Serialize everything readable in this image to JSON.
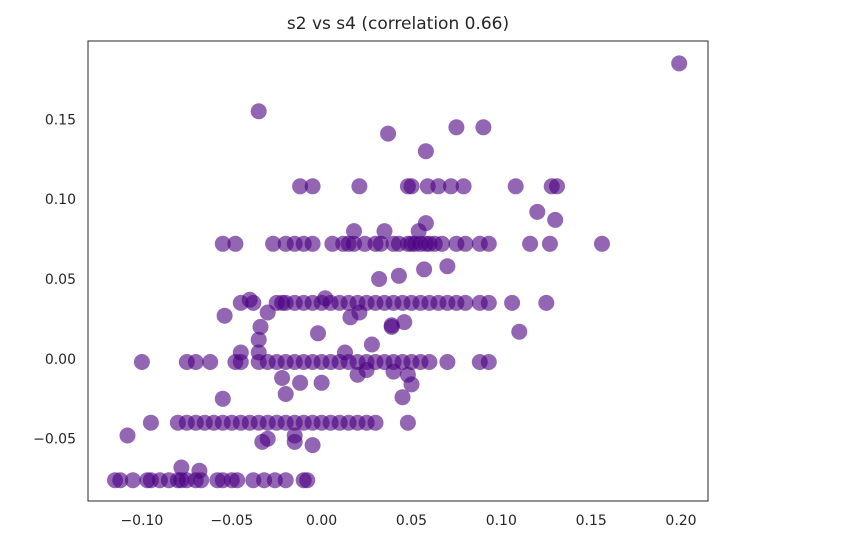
{
  "chart_data": {
    "type": "scatter",
    "title": "s2 vs s4 (correlation 0.66)",
    "xlabel": "",
    "ylabel": "",
    "xlim": [
      -0.13,
      0.215
    ],
    "ylim": [
      -0.089,
      0.199
    ],
    "x_ticks": [
      -0.1,
      -0.05,
      0.0,
      0.05,
      0.1,
      0.15,
      0.2
    ],
    "x_tick_labels": [
      "−0.10",
      "−0.05",
      "0.00",
      "0.05",
      "0.10",
      "0.15",
      "0.20"
    ],
    "y_ticks": [
      -0.05,
      0.0,
      0.05,
      0.1,
      0.15
    ],
    "y_tick_labels": [
      "−0.05",
      "0.00",
      "0.05",
      "0.10",
      "0.15"
    ],
    "grid": false,
    "legend": "none",
    "marker_color": "#4b0082",
    "marker_alpha": 0.6,
    "points": [
      [
        0.199,
        0.185
      ],
      [
        -0.035,
        0.155
      ],
      [
        0.037,
        0.141
      ],
      [
        0.075,
        0.145
      ],
      [
        0.09,
        0.145
      ],
      [
        0.058,
        0.13
      ],
      [
        -0.012,
        0.108
      ],
      [
        -0.005,
        0.108
      ],
      [
        0.021,
        0.108
      ],
      [
        0.048,
        0.108
      ],
      [
        0.05,
        0.108
      ],
      [
        0.059,
        0.108
      ],
      [
        0.065,
        0.108
      ],
      [
        0.072,
        0.108
      ],
      [
        0.079,
        0.108
      ],
      [
        0.108,
        0.108
      ],
      [
        0.128,
        0.108
      ],
      [
        0.131,
        0.108
      ],
      [
        0.12,
        0.092
      ],
      [
        0.13,
        0.087
      ],
      [
        0.058,
        0.085
      ],
      [
        0.018,
        0.08
      ],
      [
        0.054,
        0.08
      ],
      [
        0.035,
        0.08
      ],
      [
        -0.055,
        0.072
      ],
      [
        -0.048,
        0.072
      ],
      [
        -0.027,
        0.072
      ],
      [
        -0.02,
        0.072
      ],
      [
        -0.015,
        0.072
      ],
      [
        -0.01,
        0.072
      ],
      [
        -0.005,
        0.072
      ],
      [
        0.006,
        0.072
      ],
      [
        0.012,
        0.072
      ],
      [
        0.015,
        0.072
      ],
      [
        0.018,
        0.072
      ],
      [
        0.024,
        0.072
      ],
      [
        0.03,
        0.072
      ],
      [
        0.033,
        0.072
      ],
      [
        0.04,
        0.072
      ],
      [
        0.043,
        0.072
      ],
      [
        0.048,
        0.072
      ],
      [
        0.05,
        0.072
      ],
      [
        0.052,
        0.072
      ],
      [
        0.055,
        0.072
      ],
      [
        0.058,
        0.072
      ],
      [
        0.06,
        0.072
      ],
      [
        0.063,
        0.072
      ],
      [
        0.067,
        0.072
      ],
      [
        0.075,
        0.072
      ],
      [
        0.08,
        0.072
      ],
      [
        0.088,
        0.072
      ],
      [
        0.093,
        0.072
      ],
      [
        0.116,
        0.072
      ],
      [
        0.127,
        0.072
      ],
      [
        0.156,
        0.072
      ],
      [
        0.07,
        0.058
      ],
      [
        0.057,
        0.056
      ],
      [
        0.043,
        0.052
      ],
      [
        0.032,
        0.05
      ],
      [
        -0.045,
        0.035
      ],
      [
        -0.04,
        0.037
      ],
      [
        -0.038,
        0.035
      ],
      [
        -0.025,
        0.035
      ],
      [
        -0.022,
        0.035
      ],
      [
        -0.02,
        0.035
      ],
      [
        -0.015,
        0.035
      ],
      [
        -0.01,
        0.035
      ],
      [
        -0.005,
        0.035
      ],
      [
        0.0,
        0.035
      ],
      [
        0.002,
        0.038
      ],
      [
        0.005,
        0.035
      ],
      [
        0.01,
        0.035
      ],
      [
        0.015,
        0.035
      ],
      [
        0.02,
        0.035
      ],
      [
        0.025,
        0.035
      ],
      [
        0.03,
        0.035
      ],
      [
        0.035,
        0.035
      ],
      [
        0.04,
        0.035
      ],
      [
        0.045,
        0.035
      ],
      [
        0.05,
        0.035
      ],
      [
        0.055,
        0.035
      ],
      [
        0.06,
        0.035
      ],
      [
        0.065,
        0.035
      ],
      [
        0.07,
        0.035
      ],
      [
        0.075,
        0.035
      ],
      [
        0.08,
        0.035
      ],
      [
        0.088,
        0.035
      ],
      [
        0.093,
        0.035
      ],
      [
        0.106,
        0.035
      ],
      [
        0.125,
        0.035
      ],
      [
        -0.054,
        0.027
      ],
      [
        -0.03,
        0.029
      ],
      [
        -0.034,
        0.02
      ],
      [
        0.016,
        0.026
      ],
      [
        0.021,
        0.029
      ],
      [
        0.039,
        0.021
      ],
      [
        0.046,
        0.023
      ],
      [
        0.11,
        0.017
      ],
      [
        -0.002,
        0.016
      ],
      [
        0.039,
        0.02
      ],
      [
        -0.035,
        0.012
      ],
      [
        -0.035,
        0.004
      ],
      [
        -0.045,
        0.004
      ],
      [
        0.028,
        0.009
      ],
      [
        0.013,
        0.004
      ],
      [
        -0.1,
        -0.002
      ],
      [
        -0.075,
        -0.002
      ],
      [
        -0.07,
        -0.002
      ],
      [
        -0.062,
        -0.002
      ],
      [
        -0.048,
        -0.002
      ],
      [
        -0.045,
        -0.002
      ],
      [
        -0.035,
        -0.002
      ],
      [
        -0.03,
        -0.002
      ],
      [
        -0.025,
        -0.002
      ],
      [
        -0.02,
        -0.002
      ],
      [
        -0.015,
        -0.002
      ],
      [
        -0.01,
        -0.002
      ],
      [
        -0.005,
        -0.002
      ],
      [
        0.0,
        -0.002
      ],
      [
        0.005,
        -0.002
      ],
      [
        0.01,
        -0.002
      ],
      [
        0.015,
        -0.002
      ],
      [
        0.02,
        -0.002
      ],
      [
        0.025,
        -0.002
      ],
      [
        0.03,
        -0.002
      ],
      [
        0.035,
        -0.002
      ],
      [
        0.04,
        -0.002
      ],
      [
        0.045,
        -0.002
      ],
      [
        0.05,
        -0.002
      ],
      [
        0.055,
        -0.002
      ],
      [
        0.06,
        -0.002
      ],
      [
        0.07,
        -0.002
      ],
      [
        0.088,
        -0.002
      ],
      [
        0.093,
        -0.002
      ],
      [
        -0.022,
        -0.012
      ],
      [
        -0.012,
        -0.015
      ],
      [
        0.0,
        -0.015
      ],
      [
        0.02,
        -0.01
      ],
      [
        0.025,
        -0.007
      ],
      [
        0.04,
        -0.008
      ],
      [
        0.048,
        -0.01
      ],
      [
        -0.055,
        -0.025
      ],
      [
        -0.02,
        -0.022
      ],
      [
        0.045,
        -0.024
      ],
      [
        0.05,
        -0.016
      ],
      [
        -0.08,
        -0.04
      ],
      [
        -0.075,
        -0.04
      ],
      [
        -0.07,
        -0.04
      ],
      [
        -0.065,
        -0.04
      ],
      [
        -0.06,
        -0.04
      ],
      [
        -0.055,
        -0.04
      ],
      [
        -0.05,
        -0.04
      ],
      [
        -0.045,
        -0.04
      ],
      [
        -0.04,
        -0.04
      ],
      [
        -0.035,
        -0.04
      ],
      [
        -0.03,
        -0.04
      ],
      [
        -0.025,
        -0.04
      ],
      [
        -0.02,
        -0.04
      ],
      [
        -0.015,
        -0.04
      ],
      [
        -0.01,
        -0.04
      ],
      [
        -0.005,
        -0.04
      ],
      [
        0.0,
        -0.04
      ],
      [
        0.005,
        -0.04
      ],
      [
        0.01,
        -0.04
      ],
      [
        0.015,
        -0.04
      ],
      [
        0.02,
        -0.04
      ],
      [
        0.025,
        -0.04
      ],
      [
        0.03,
        -0.04
      ],
      [
        -0.095,
        -0.04
      ],
      [
        0.048,
        -0.04
      ],
      [
        -0.108,
        -0.048
      ],
      [
        -0.033,
        -0.052
      ],
      [
        -0.03,
        -0.05
      ],
      [
        -0.015,
        -0.048
      ],
      [
        -0.015,
        -0.052
      ],
      [
        -0.005,
        -0.054
      ],
      [
        -0.078,
        -0.068
      ],
      [
        -0.068,
        -0.07
      ],
      [
        -0.115,
        -0.076
      ],
      [
        -0.112,
        -0.076
      ],
      [
        -0.105,
        -0.076
      ],
      [
        -0.097,
        -0.076
      ],
      [
        -0.095,
        -0.076
      ],
      [
        -0.09,
        -0.076
      ],
      [
        -0.085,
        -0.076
      ],
      [
        -0.08,
        -0.076
      ],
      [
        -0.078,
        -0.076
      ],
      [
        -0.075,
        -0.076
      ],
      [
        -0.07,
        -0.076
      ],
      [
        -0.067,
        -0.076
      ],
      [
        -0.058,
        -0.076
      ],
      [
        -0.055,
        -0.076
      ],
      [
        -0.05,
        -0.076
      ],
      [
        -0.047,
        -0.076
      ],
      [
        -0.038,
        -0.076
      ],
      [
        -0.032,
        -0.076
      ],
      [
        -0.026,
        -0.076
      ],
      [
        -0.02,
        -0.076
      ],
      [
        -0.01,
        -0.076
      ],
      [
        -0.008,
        -0.076
      ]
    ]
  }
}
